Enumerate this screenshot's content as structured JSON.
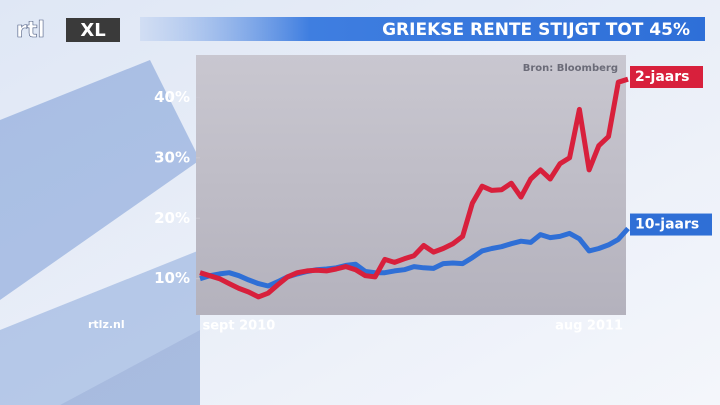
{
  "brand": {
    "logo_left": "rtl",
    "logo_right": "XL",
    "site": "rtlz.nl"
  },
  "chart_data": {
    "type": "line",
    "title": "GRIEKSE RENTE STIJGT TOT 45%",
    "source": "Bron: Bloomberg",
    "categories": [
      null,
      null,
      null,
      null,
      "sept 2010",
      null,
      null,
      null,
      null,
      null,
      null,
      null,
      null,
      null,
      null,
      null,
      null,
      null,
      null,
      null,
      null,
      null,
      null,
      null,
      null,
      null,
      null,
      null,
      null,
      null,
      null,
      null,
      null,
      null,
      null,
      null,
      null,
      null,
      null,
      null,
      "aug 2011",
      null,
      null,
      null,
      null
    ],
    "series": [
      {
        "name": "2-jaars",
        "color": "#d8203c",
        "values": [
          11,
          10.5,
          10,
          9.2,
          8.4,
          7.8,
          7,
          7.6,
          9,
          10.3,
          11,
          11.3,
          11.4,
          11.3,
          11.6,
          12,
          11.5,
          10.5,
          10.3,
          13.2,
          12.7,
          13.3,
          13.8,
          15.5,
          14.4,
          15,
          15.8,
          17,
          22.5,
          25.3,
          24.6,
          24.7,
          25.8,
          23.5,
          26.5,
          28,
          26.5,
          29,
          30,
          38,
          28,
          32,
          33.5,
          42.5,
          43
        ]
      },
      {
        "name": "10-jaars",
        "color": "#2f6fd6",
        "values": [
          10,
          10.5,
          10.8,
          11,
          10.5,
          9.8,
          9.2,
          8.8,
          9.5,
          10.3,
          10.8,
          11.2,
          11.5,
          11.6,
          11.8,
          12.2,
          12.4,
          11.2,
          11,
          11,
          11.3,
          11.5,
          12,
          11.8,
          11.7,
          12.5,
          12.6,
          12.5,
          13.5,
          14.6,
          15,
          15.3,
          15.8,
          16.2,
          16,
          17.3,
          16.8,
          17,
          17.5,
          16.6,
          14.6,
          15,
          15.6,
          16.5,
          18.3
        ]
      }
    ],
    "ylim": [
      4,
      47
    ],
    "yticks": [
      {
        "value": 10,
        "label": "10%"
      },
      {
        "value": 20,
        "label": "20%"
      },
      {
        "value": 30,
        "label": "30%"
      },
      {
        "value": 40,
        "label": "40%"
      }
    ]
  }
}
